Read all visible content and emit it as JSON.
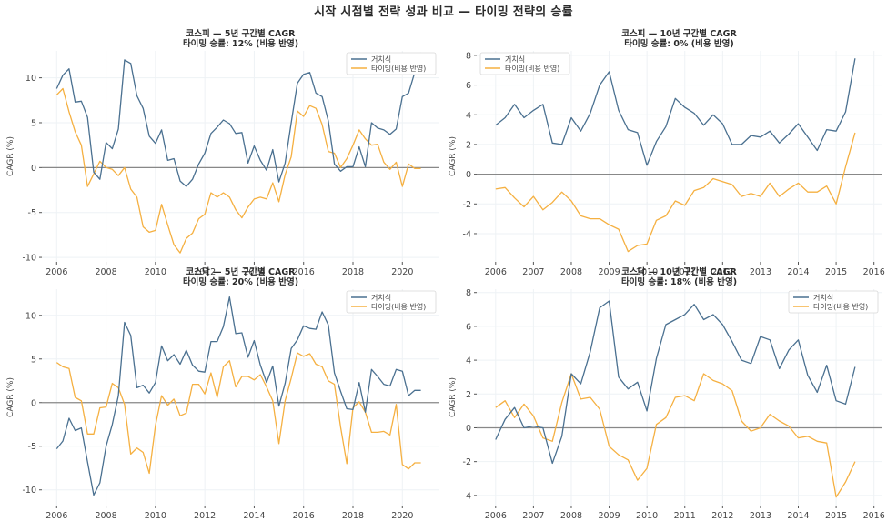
{
  "suptitle": "시작 시점별 전략 성과 비교 — 타이밍 전략의 승률",
  "colors": {
    "buy_hold": "#4a7090",
    "timing": "#f5b041",
    "zero_line": "#888888"
  },
  "chart_data": [
    {
      "id": "kospi-5y",
      "type": "line",
      "title": "코스피 — 5년 구간별 CAGR",
      "subtitle": "타이밍 승률: 12% (비용 반영)",
      "xlabel": "",
      "ylabel": "CAGR (%)",
      "xlim": [
        2005.4,
        2021.5
      ],
      "ylim": [
        -10.5,
        13
      ],
      "xticks": [
        2006,
        2008,
        2010,
        2012,
        2014,
        2016,
        2018,
        2020
      ],
      "yticks": [
        -10,
        -5,
        0,
        5,
        10
      ],
      "grid": true,
      "legend": "top-right",
      "x_start": 2006.0,
      "x_step": 0.25,
      "series": [
        {
          "name": "거치식",
          "color_key": "buy_hold",
          "values": [
            8.8,
            10.3,
            11.0,
            7.3,
            7.4,
            5.6,
            -0.5,
            -1.3,
            2.8,
            2.1,
            4.3,
            12.0,
            11.6,
            8.0,
            6.6,
            3.5,
            2.7,
            4.2,
            0.8,
            1.0,
            -1.5,
            -2.1,
            -1.3,
            0.4,
            1.6,
            3.8,
            4.5,
            5.3,
            4.9,
            3.8,
            3.9,
            0.5,
            2.4,
            0.8,
            -0.3,
            2.0,
            -1.6,
            0.5,
            5.0,
            9.4,
            10.4,
            10.6,
            8.3,
            7.9,
            5.2,
            0.4,
            -0.4,
            0.1,
            0.1,
            2.3,
            0.1,
            5.0,
            4.4,
            4.2,
            3.7,
            4.3,
            7.9,
            8.3,
            10.6,
            12.8
          ]
        },
        {
          "name": "타이밍(비용 반영)",
          "color_key": "timing",
          "values": [
            8.1,
            8.8,
            6.2,
            4.0,
            2.5,
            -2.1,
            -0.7,
            0.7,
            0.0,
            -0.2,
            -0.9,
            0.0,
            -2.4,
            -3.3,
            -6.6,
            -7.2,
            -7.0,
            -4.1,
            -6.4,
            -8.6,
            -9.5,
            -7.9,
            -7.3,
            -5.7,
            -5.2,
            -2.8,
            -3.3,
            -2.8,
            -3.3,
            -4.7,
            -5.6,
            -4.4,
            -3.5,
            -3.3,
            -3.5,
            -1.7,
            -3.8,
            -0.8,
            1.2,
            6.3,
            5.7,
            6.9,
            6.6,
            4.8,
            1.8,
            1.6,
            0.0,
            1.0,
            2.5,
            4.2,
            3.2,
            2.5,
            2.6,
            0.6,
            -0.2,
            0.6,
            -2.1,
            0.4,
            -0.1,
            -0.1
          ]
        }
      ]
    },
    {
      "id": "kospi-10y",
      "type": "line",
      "title": "코스피 — 10년 구간별 CAGR",
      "subtitle": "타이밍 승률: 0% (비용 반영)",
      "xlabel": "",
      "ylabel": "CAGR (%)",
      "xlim": [
        2005.5,
        2016.2
      ],
      "ylim": [
        -5.9,
        8.3
      ],
      "xticks": [
        2006,
        2007,
        2008,
        2009,
        2010,
        2011,
        2012,
        2013,
        2014,
        2015,
        2016
      ],
      "yticks": [
        -4,
        -2,
        0,
        2,
        4,
        6,
        8
      ],
      "grid": true,
      "legend": "top-left",
      "x_start": 2006.0,
      "x_step": 0.25,
      "series": [
        {
          "name": "거치식",
          "color_key": "buy_hold",
          "values": [
            3.3,
            3.8,
            4.7,
            3.8,
            4.3,
            4.7,
            2.1,
            2.0,
            3.8,
            2.9,
            4.1,
            6.0,
            6.9,
            4.3,
            3.0,
            2.8,
            0.6,
            2.2,
            3.2,
            5.1,
            4.5,
            4.1,
            3.3,
            4.0,
            3.4,
            2.0,
            2.0,
            2.6,
            2.5,
            2.9,
            2.1,
            2.7,
            3.4,
            2.5,
            1.6,
            3.0,
            2.9,
            4.2,
            7.8
          ]
        },
        {
          "name": "타이밍(비용 반영)",
          "color_key": "timing",
          "values": [
            -1.0,
            -0.9,
            -1.6,
            -2.2,
            -1.5,
            -2.4,
            -1.9,
            -1.2,
            -1.8,
            -2.8,
            -3.0,
            -3.0,
            -3.4,
            -3.7,
            -5.2,
            -4.8,
            -4.7,
            -3.1,
            -2.8,
            -1.8,
            -2.1,
            -1.1,
            -0.9,
            -0.3,
            -0.5,
            -0.7,
            -1.5,
            -1.3,
            -1.5,
            -0.6,
            -1.5,
            -1.0,
            -0.6,
            -1.2,
            -1.2,
            -0.8,
            -2.0,
            0.5,
            2.8
          ]
        }
      ]
    },
    {
      "id": "kosdaq-5y",
      "type": "line",
      "title": "코스닥 — 5년 구간별 CAGR",
      "subtitle": "타이밍 승률: 20% (비용 반영)",
      "xlabel": "",
      "ylabel": "CAGR (%)",
      "xlim": [
        2005.4,
        2021.5
      ],
      "ylim": [
        -11.8,
        13
      ],
      "xticks": [
        2006,
        2008,
        2010,
        2012,
        2014,
        2016,
        2018,
        2020
      ],
      "yticks": [
        -10,
        -5,
        0,
        5,
        10
      ],
      "grid": true,
      "legend": "top-right",
      "x_start": 2006.0,
      "x_step": 0.25,
      "series": [
        {
          "name": "거치식",
          "color_key": "buy_hold",
          "values": [
            -5.3,
            -4.4,
            -1.8,
            -3.2,
            -2.9,
            -6.8,
            -10.6,
            -9.2,
            -5.0,
            -2.5,
            0.8,
            9.2,
            7.7,
            1.7,
            2.0,
            1.1,
            2.3,
            6.5,
            4.8,
            5.5,
            4.4,
            6.0,
            4.3,
            3.6,
            3.5,
            7.0,
            7.0,
            8.7,
            12.1,
            7.9,
            8.0,
            5.2,
            7.1,
            4.3,
            2.3,
            4.2,
            -0.4,
            2.2,
            6.2,
            7.2,
            8.8,
            8.5,
            8.4,
            10.4,
            8.9,
            3.4,
            1.3,
            -0.7,
            -0.8,
            2.3,
            -1.1,
            3.8,
            3.0,
            2.1,
            1.9,
            3.8,
            3.6,
            0.8,
            1.4,
            1.4
          ]
        },
        {
          "name": "타이밍(비용 반영)",
          "color_key": "timing",
          "values": [
            4.6,
            4.1,
            3.9,
            0.6,
            0.2,
            -3.6,
            -3.6,
            -0.6,
            -0.5,
            2.2,
            1.7,
            -0.2,
            -5.9,
            -5.2,
            -5.7,
            -8.1,
            -2.6,
            0.8,
            -0.3,
            0.4,
            -1.5,
            -1.2,
            2.1,
            2.1,
            1.0,
            3.4,
            0.6,
            4.1,
            4.8,
            1.8,
            3.0,
            3.0,
            2.6,
            3.2,
            1.8,
            0.2,
            -4.7,
            0.2,
            2.8,
            5.7,
            5.3,
            5.6,
            4.4,
            4.1,
            2.5,
            2.1,
            -2.8,
            -7.0,
            -0.6,
            0.1,
            -1.1,
            -3.4,
            -3.4,
            -3.3,
            -3.7,
            -0.2,
            -7.1,
            -7.6,
            -6.9,
            -6.9
          ]
        }
      ]
    },
    {
      "id": "kosdaq-10y",
      "type": "line",
      "title": "코스닥 — 10년 구간별 CAGR",
      "subtitle": "타이밍 승률: 18% (비용 반영)",
      "xlabel": "",
      "ylabel": "CAGR (%)",
      "xlim": [
        2005.5,
        2016.2
      ],
      "ylim": [
        -4.6,
        8.2
      ],
      "xticks": [
        2006,
        2007,
        2008,
        2009,
        2010,
        2011,
        2012,
        2013,
        2014,
        2015,
        2016
      ],
      "yticks": [
        -4,
        -2,
        0,
        2,
        4,
        6,
        8
      ],
      "grid": true,
      "legend": "top-right",
      "x_start": 2006.0,
      "x_step": 0.25,
      "series": [
        {
          "name": "거치식",
          "color_key": "buy_hold",
          "values": [
            -0.7,
            0.5,
            1.2,
            0.0,
            0.1,
            0.0,
            -2.1,
            -0.5,
            3.2,
            2.6,
            4.5,
            7.1,
            7.5,
            3.0,
            2.3,
            2.7,
            1.0,
            4.1,
            6.1,
            6.4,
            6.7,
            7.3,
            6.4,
            6.7,
            6.1,
            5.1,
            4.0,
            3.8,
            5.4,
            5.2,
            3.5,
            4.6,
            5.2,
            3.1,
            2.1,
            3.7,
            1.6,
            1.4,
            3.6
          ]
        },
        {
          "name": "타이밍(비용 반영)",
          "color_key": "timing",
          "values": [
            1.2,
            1.6,
            0.6,
            1.4,
            0.7,
            -0.6,
            -0.8,
            1.5,
            3.2,
            1.7,
            1.8,
            1.1,
            -1.1,
            -1.6,
            -1.9,
            -3.1,
            -2.4,
            0.2,
            0.6,
            1.8,
            1.9,
            1.6,
            3.2,
            2.8,
            2.6,
            2.2,
            0.4,
            -0.2,
            0.0,
            0.8,
            0.4,
            0.1,
            -0.6,
            -0.5,
            -0.8,
            -0.9,
            -4.1,
            -3.2,
            -2.0
          ]
        }
      ]
    }
  ]
}
